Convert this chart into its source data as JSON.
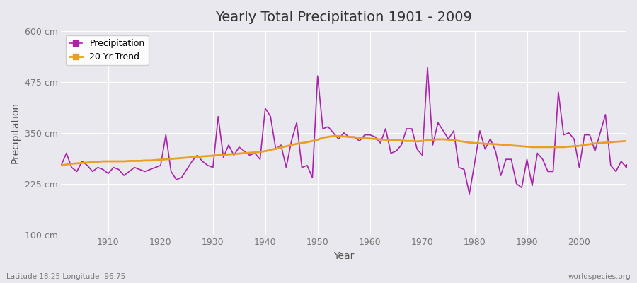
{
  "title": "Yearly Total Precipitation 1901 - 2009",
  "xlabel": "Year",
  "ylabel": "Precipitation",
  "bottom_left_label": "Latitude 18.25 Longitude -96.75",
  "bottom_right_label": "worldspecies.org",
  "ylim": [
    100,
    600
  ],
  "yticks": [
    100,
    225,
    350,
    475,
    600
  ],
  "ytick_labels": [
    "100 cm",
    "225 cm",
    "350 cm",
    "475 cm",
    "600 cm"
  ],
  "xlim": [
    1901,
    2009
  ],
  "xticks": [
    1910,
    1920,
    1930,
    1940,
    1950,
    1960,
    1970,
    1980,
    1990,
    2000
  ],
  "bg_color": "#e8e8ee",
  "plot_bg_color": "#e8e8ee",
  "grid_color": "#ffffff",
  "precip_color": "#aa22aa",
  "trend_color": "#e8a020",
  "precip_linewidth": 1.2,
  "trend_linewidth": 2.0,
  "legend_marker": "s",
  "years": [
    1901,
    1902,
    1903,
    1904,
    1905,
    1906,
    1907,
    1908,
    1909,
    1910,
    1911,
    1912,
    1913,
    1914,
    1915,
    1916,
    1917,
    1918,
    1919,
    1920,
    1921,
    1922,
    1923,
    1924,
    1925,
    1926,
    1927,
    1928,
    1929,
    1930,
    1931,
    1932,
    1933,
    1934,
    1935,
    1936,
    1937,
    1938,
    1939,
    1940,
    1941,
    1942,
    1943,
    1944,
    1945,
    1946,
    1947,
    1948,
    1949,
    1950,
    1951,
    1952,
    1953,
    1954,
    1955,
    1956,
    1957,
    1958,
    1959,
    1960,
    1961,
    1962,
    1963,
    1964,
    1965,
    1966,
    1967,
    1968,
    1969,
    1970,
    1971,
    1972,
    1973,
    1974,
    1975,
    1976,
    1977,
    1978,
    1979,
    1980,
    1981,
    1982,
    1983,
    1984,
    1985,
    1986,
    1987,
    1988,
    1989,
    1990,
    1991,
    1992,
    1993,
    1994,
    1995,
    1996,
    1997,
    1998,
    1999,
    2000,
    2001,
    2002,
    2003,
    2004,
    2005,
    2006,
    2007,
    2008,
    2009
  ],
  "precip": [
    270,
    300,
    265,
    255,
    280,
    270,
    255,
    265,
    260,
    250,
    265,
    260,
    245,
    255,
    265,
    260,
    255,
    260,
    265,
    270,
    345,
    255,
    235,
    240,
    260,
    280,
    295,
    280,
    270,
    265,
    390,
    290,
    320,
    295,
    315,
    305,
    295,
    300,
    285,
    410,
    390,
    310,
    320,
    265,
    330,
    375,
    265,
    270,
    240,
    490,
    360,
    365,
    350,
    335,
    350,
    340,
    340,
    330,
    345,
    345,
    340,
    325,
    360,
    300,
    305,
    320,
    360,
    360,
    310,
    295,
    510,
    320,
    375,
    355,
    335,
    355,
    265,
    260,
    200,
    275,
    355,
    310,
    335,
    305,
    245,
    285,
    285,
    225,
    215,
    285,
    220,
    300,
    285,
    255,
    255,
    450,
    345,
    350,
    335,
    265,
    345,
    345,
    305,
    350,
    395,
    270,
    255,
    280,
    265
  ],
  "trend": [
    270,
    272,
    274,
    275,
    276,
    277,
    278,
    279,
    280,
    280,
    280,
    280,
    280,
    281,
    281,
    281,
    282,
    282,
    283,
    284,
    285,
    286,
    287,
    288,
    289,
    290,
    291,
    292,
    293,
    294,
    295,
    296,
    297,
    298,
    299,
    300,
    301,
    302,
    303,
    305,
    308,
    311,
    314,
    317,
    320,
    323,
    325,
    327,
    330,
    333,
    338,
    340,
    342,
    342,
    341,
    340,
    339,
    338,
    337,
    336,
    335,
    334,
    333,
    332,
    332,
    331,
    330,
    330,
    329,
    330,
    332,
    333,
    334,
    334,
    333,
    332,
    330,
    328,
    326,
    325,
    324,
    323,
    323,
    322,
    321,
    320,
    319,
    318,
    317,
    316,
    315,
    315,
    315,
    315,
    315,
    315,
    315,
    316,
    317,
    318,
    320,
    322,
    324,
    325,
    326,
    327,
    328,
    329,
    330
  ]
}
